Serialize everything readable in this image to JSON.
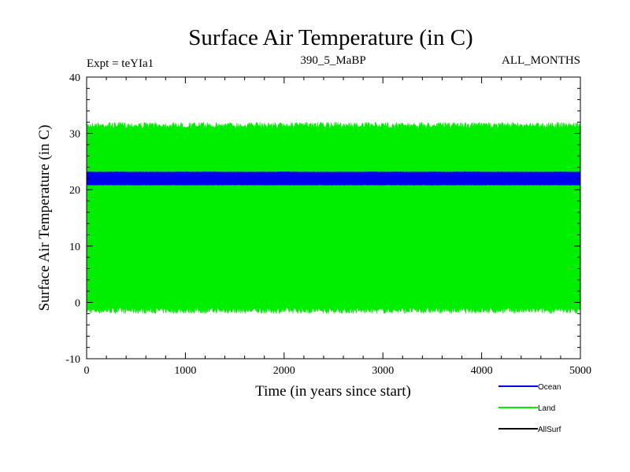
{
  "chart_data": {
    "type": "area",
    "title": "Surface Air Temperature (in C)",
    "subtitle_left": "Expt = teYIa1",
    "subtitle_center": "390_5_MaBP",
    "subtitle_right": "ALL_MONTHS",
    "xlabel": "Time (in years since start)",
    "ylabel": "Surface Air Temperature (in C)",
    "xlim": [
      0,
      5000
    ],
    "ylim": [
      -10,
      40
    ],
    "x_ticks": [
      0,
      1000,
      2000,
      3000,
      4000,
      5000
    ],
    "x_tick_labels": [
      "0",
      "1000",
      "2000",
      "3000",
      "4000",
      "5000"
    ],
    "y_ticks": [
      -10,
      0,
      10,
      20,
      30,
      40
    ],
    "y_tick_labels": [
      "-10",
      "0",
      "10",
      "20",
      "30",
      "40"
    ],
    "grid": false,
    "legend_position": "bottom-right, below plot",
    "series": [
      {
        "name": "Land",
        "color": "#00ee00",
        "low": -2,
        "high": 32,
        "mean": 15
      },
      {
        "name": "Ocean",
        "color": "#0000ee",
        "low": 20.8,
        "high": 23.2,
        "mean": 22
      },
      {
        "name": "AllSurf",
        "color": "#000000",
        "low": null,
        "high": null,
        "mean": null
      }
    ],
    "legend": [
      {
        "name": "Ocean",
        "color": "#0000ee"
      },
      {
        "name": "Land",
        "color": "#00ee00"
      },
      {
        "name": "AllSurf",
        "color": "#000000"
      }
    ]
  }
}
